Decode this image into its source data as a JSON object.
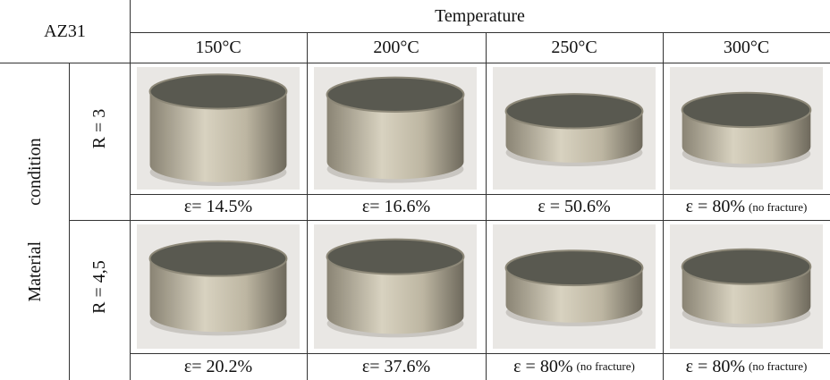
{
  "table": {
    "corner": "AZ31",
    "group": "Temperature",
    "columns": [
      "150°C",
      "200°C",
      "250°C",
      "300°C"
    ],
    "row_group": [
      "Material",
      "condition"
    ],
    "rows": [
      {
        "label": "R = 3",
        "strains": [
          {
            "text": "ε= 14.5%"
          },
          {
            "text": "ε= 16.6%"
          },
          {
            "text": "ε = 50.6%"
          },
          {
            "text": "ε = 80%",
            "note": "(no fracture)"
          }
        ]
      },
      {
        "label": "R = 4,5",
        "strains": [
          {
            "text": "ε= 20.2%"
          },
          {
            "text": "ε= 37.6%"
          },
          {
            "text": "ε = 80%",
            "note": "(no fracture)"
          },
          {
            "text": "ε = 80%",
            "note": "(no fracture)"
          }
        ]
      }
    ]
  }
}
